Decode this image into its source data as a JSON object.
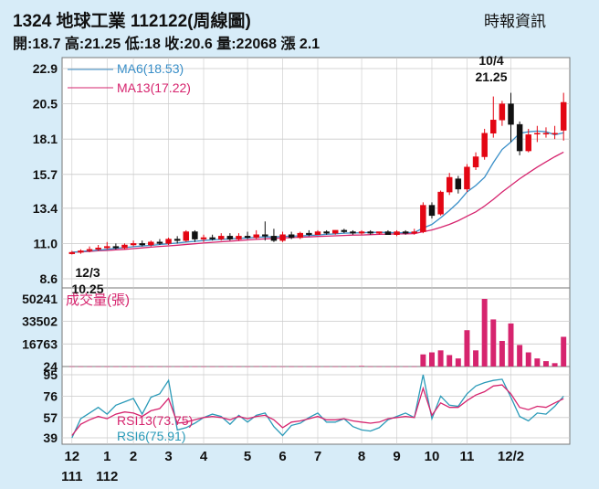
{
  "header": {
    "title": "1324  地球工業 112122(周線圖)",
    "source": "時報資訊",
    "summary": "開:18.7 高:21.25 低:18 收:20.6 量:22068 漲 2.1"
  },
  "chart_data": [
    {
      "type": "candlestick",
      "ylim": [
        8.6,
        22.9
      ],
      "y_ticks": [
        "22.9",
        "20.5",
        "18.1",
        "15.7",
        "13.4",
        "11.0",
        "8.6"
      ],
      "legend": [
        {
          "label": "MA6(18.53)",
          "color": "#3a8fc8"
        },
        {
          "label": "MA13(17.22)",
          "color": "#d6246e"
        }
      ],
      "annotations": [
        {
          "text": "10/4",
          "sub": "21.25",
          "at": "high"
        },
        {
          "text": "12/3",
          "sub": "10.25",
          "at": "low"
        }
      ],
      "candles": [
        [
          10.3,
          10.5,
          10.25,
          10.4
        ],
        [
          10.4,
          10.6,
          10.3,
          10.5
        ],
        [
          10.5,
          10.8,
          10.4,
          10.6
        ],
        [
          10.6,
          10.9,
          10.5,
          10.7
        ],
        [
          10.7,
          11.1,
          10.6,
          10.8
        ],
        [
          10.8,
          11.0,
          10.6,
          10.7
        ],
        [
          10.7,
          11.0,
          10.6,
          10.9
        ],
        [
          10.9,
          11.2,
          10.8,
          11.0
        ],
        [
          11.0,
          11.2,
          10.8,
          10.9
        ],
        [
          10.9,
          11.2,
          10.8,
          11.1
        ],
        [
          11.1,
          11.3,
          10.9,
          11.0
        ],
        [
          11.0,
          11.4,
          10.9,
          11.3
        ],
        [
          11.3,
          11.5,
          11.0,
          11.2
        ],
        [
          11.2,
          11.9,
          11.1,
          11.8
        ],
        [
          11.8,
          11.9,
          11.1,
          11.3
        ],
        [
          11.3,
          11.6,
          11.1,
          11.4
        ],
        [
          11.4,
          11.6,
          11.2,
          11.3
        ],
        [
          11.3,
          11.7,
          11.2,
          11.5
        ],
        [
          11.5,
          11.7,
          11.2,
          11.3
        ],
        [
          11.3,
          11.7,
          11.2,
          11.5
        ],
        [
          11.5,
          11.8,
          11.3,
          11.4
        ],
        [
          11.4,
          11.9,
          11.3,
          11.6
        ],
        [
          11.6,
          12.5,
          11.2,
          11.5
        ],
        [
          11.5,
          12.0,
          11.1,
          11.2
        ],
        [
          11.2,
          11.8,
          11.1,
          11.6
        ],
        [
          11.6,
          11.8,
          11.3,
          11.4
        ],
        [
          11.4,
          11.8,
          11.3,
          11.7
        ],
        [
          11.7,
          11.9,
          11.5,
          11.6
        ],
        [
          11.6,
          11.9,
          11.6,
          11.8
        ],
        [
          11.8,
          11.9,
          11.6,
          11.7
        ],
        [
          11.7,
          11.9,
          11.6,
          11.9
        ],
        [
          11.9,
          12.0,
          11.7,
          11.8
        ],
        [
          11.8,
          11.9,
          11.6,
          11.7
        ],
        [
          11.7,
          11.9,
          11.6,
          11.8
        ],
        [
          11.8,
          11.9,
          11.6,
          11.7
        ],
        [
          11.7,
          11.8,
          11.6,
          11.8
        ],
        [
          11.8,
          11.9,
          11.6,
          11.6
        ],
        [
          11.6,
          11.9,
          11.5,
          11.8
        ],
        [
          11.8,
          11.9,
          11.6,
          11.7
        ],
        [
          11.7,
          12.0,
          11.6,
          11.8
        ],
        [
          11.8,
          13.8,
          11.7,
          13.6
        ],
        [
          13.6,
          13.8,
          12.7,
          12.9
        ],
        [
          13.0,
          14.6,
          12.9,
          14.5
        ],
        [
          14.5,
          15.8,
          14.3,
          15.5
        ],
        [
          15.4,
          15.6,
          14.4,
          14.7
        ],
        [
          14.7,
          16.4,
          14.5,
          16.2
        ],
        [
          16.2,
          17.2,
          16.0,
          16.9
        ],
        [
          16.9,
          18.8,
          16.7,
          18.5
        ],
        [
          18.5,
          21.0,
          18.2,
          19.4
        ],
        [
          19.4,
          20.7,
          19.0,
          20.5
        ],
        [
          20.5,
          21.25,
          17.9,
          19.1
        ],
        [
          19.1,
          19.3,
          17.0,
          17.3
        ],
        [
          17.3,
          18.8,
          17.2,
          18.4
        ],
        [
          18.5,
          19.0,
          17.9,
          18.5
        ],
        [
          18.5,
          18.9,
          18.2,
          18.5
        ],
        [
          18.5,
          19.0,
          18.1,
          18.5
        ],
        [
          18.7,
          21.25,
          18.0,
          20.6
        ]
      ],
      "ma6": [
        10.4,
        10.45,
        10.5,
        10.55,
        10.6,
        10.67,
        10.72,
        10.78,
        10.83,
        10.87,
        10.93,
        10.98,
        11.03,
        11.1,
        11.15,
        11.2,
        11.25,
        11.28,
        11.32,
        11.35,
        11.38,
        11.42,
        11.45,
        11.45,
        11.48,
        11.5,
        11.52,
        11.55,
        11.58,
        11.62,
        11.65,
        11.7,
        11.72,
        11.73,
        11.75,
        11.76,
        11.75,
        11.73,
        11.74,
        11.75,
        12.05,
        12.3,
        12.75,
        13.25,
        13.8,
        14.5,
        14.95,
        15.5,
        16.5,
        17.4,
        17.9,
        18.5,
        18.6,
        18.65,
        18.6,
        18.4,
        18.53
      ],
      "ma13": [
        10.4,
        10.43,
        10.46,
        10.5,
        10.53,
        10.57,
        10.6,
        10.65,
        10.7,
        10.75,
        10.8,
        10.84,
        10.88,
        10.93,
        10.98,
        11.03,
        11.08,
        11.12,
        11.16,
        11.2,
        11.24,
        11.28,
        11.32,
        11.35,
        11.38,
        11.4,
        11.43,
        11.45,
        11.48,
        11.5,
        11.52,
        11.55,
        11.57,
        11.58,
        11.6,
        11.62,
        11.64,
        11.65,
        11.66,
        11.67,
        11.8,
        11.92,
        12.1,
        12.3,
        12.55,
        12.85,
        13.15,
        13.55,
        14.0,
        14.5,
        14.95,
        15.4,
        15.8,
        16.2,
        16.55,
        16.9,
        17.22
      ]
    },
    {
      "type": "bar",
      "title": "成交量(張)",
      "ylim": [
        0,
        50241
      ],
      "y_ticks": [
        "50241",
        "33502",
        "16763",
        "24"
      ],
      "values": [
        120,
        60,
        80,
        100,
        80,
        60,
        90,
        70,
        60,
        80,
        70,
        100,
        90,
        80,
        60,
        90,
        70,
        80,
        100,
        90,
        80,
        150,
        220,
        120,
        90,
        80,
        70,
        100,
        80,
        60,
        70,
        90,
        80,
        450,
        70,
        80,
        60,
        80,
        90,
        100,
        9000,
        10500,
        12000,
        8500,
        6000,
        27000,
        12000,
        50241,
        35000,
        19000,
        32000,
        16000,
        10500,
        6000,
        4000,
        2500,
        22068
      ],
      "color": "#d6246e"
    },
    {
      "type": "line",
      "ylim": [
        39,
        95
      ],
      "y_ticks": [
        "95",
        "76",
        "57",
        "39"
      ],
      "legend": [
        {
          "label": "RSI13(73.75)",
          "color": "#d6246e"
        },
        {
          "label": "RSI6(75.91)",
          "color": "#2a9ab8"
        }
      ],
      "series": [
        {
          "name": "RSI13",
          "values": [
            41,
            51,
            55,
            58,
            56,
            60,
            62,
            61,
            58,
            63,
            65,
            74,
            52,
            53,
            55,
            57,
            58,
            57,
            55,
            58,
            56,
            58,
            59,
            55,
            48,
            53,
            54,
            56,
            58,
            55,
            55,
            56,
            54,
            53,
            52,
            53,
            56,
            57,
            58,
            57,
            83,
            59,
            70,
            66,
            66,
            72,
            77,
            80,
            85,
            86,
            78,
            66,
            64,
            67,
            66,
            70,
            73.75
          ]
        },
        {
          "name": "RSI6",
          "values": [
            39,
            56,
            61,
            66,
            60,
            68,
            71,
            74,
            60,
            75,
            78,
            90,
            46,
            48,
            52,
            57,
            60,
            58,
            51,
            59,
            53,
            59,
            61,
            49,
            41,
            50,
            52,
            57,
            61,
            53,
            53,
            56,
            49,
            46,
            45,
            48,
            55,
            58,
            61,
            57,
            95,
            56,
            76,
            68,
            67,
            78,
            85,
            88,
            90,
            91,
            75,
            58,
            54,
            61,
            60,
            67,
            75.91
          ]
        }
      ]
    }
  ],
  "x_axis": {
    "month_labels": [
      "12",
      "1",
      "2",
      "3",
      "4",
      "5",
      "6",
      "7",
      "8",
      "9",
      "10",
      "11",
      "12/2"
    ],
    "month_weeks": [
      0,
      4,
      7,
      11,
      15,
      20,
      24,
      28,
      33,
      37,
      41,
      45,
      50
    ],
    "year_labels": [
      "111",
      "112"
    ],
    "year_weeks": [
      0,
      4
    ]
  },
  "colors": {
    "background": "#d7ecf8",
    "panel": "#ffffff",
    "up": "#e30613",
    "down": "#111111",
    "grid": "#c9c9c9"
  }
}
